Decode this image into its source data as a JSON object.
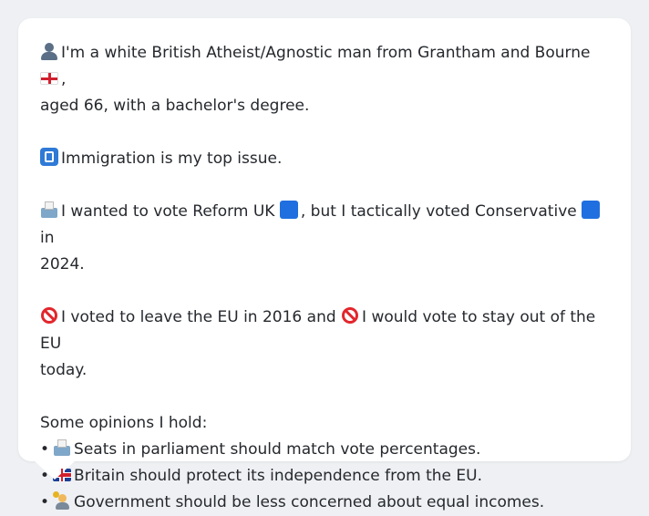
{
  "profile": {
    "intro_line1": "I'm a white British Atheist/Agnostic man from Grantham and Bourne",
    "intro_line1_end": ",",
    "intro_line2": "aged 66, with a bachelor's degree.",
    "issue": "Immigration is my top issue.",
    "vote_part1": "I wanted to vote Reform UK",
    "vote_part2": ", but I tactically voted Conservative",
    "vote_part3": "in",
    "vote_part4": "2024.",
    "eu_part1": "I voted to leave the EU in 2016 and",
    "eu_part2": "I would vote to stay out of the EU",
    "eu_part3": "today.",
    "opinions_heading": "Some opinions I hold:",
    "opinions": [
      "Seats in parliament should match vote percentages.",
      "Britain should protect its independence from the EU.",
      "Government should be less concerned about equal incomes."
    ],
    "bullet": "•"
  },
  "icons": {
    "intro": "person-icon",
    "region_flag": "flag-england-icon",
    "issue": "passport-control-icon",
    "vote": "ballot-box-icon",
    "party": "blue-square-icon",
    "eu": "no-entry-icon",
    "opinion_1": "ballot-box-icon",
    "opinion_2": "flag-uk-icon",
    "opinion_3": "money-person-icon"
  },
  "colors": {
    "background": "#eef0f3",
    "card": "#ffffff",
    "text": "#25282d"
  }
}
